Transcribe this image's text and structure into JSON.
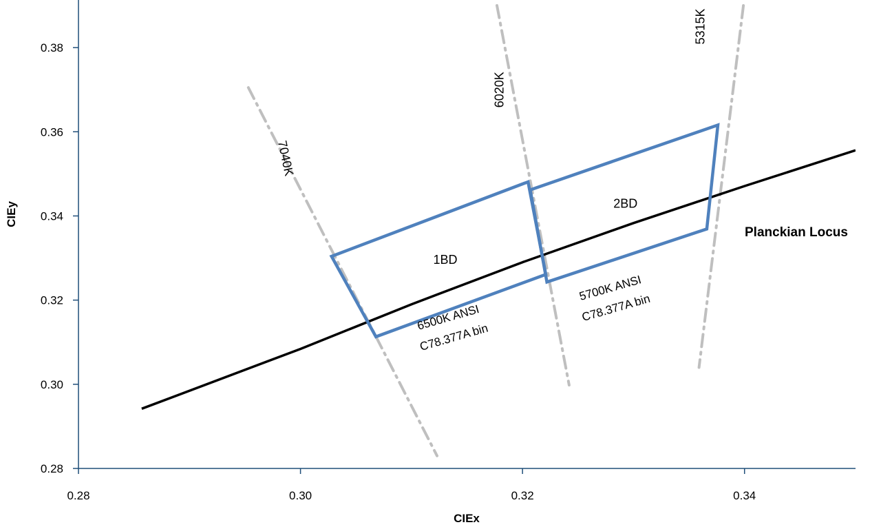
{
  "chart_data": {
    "type": "scatter",
    "xlabel": "CIEx",
    "ylabel": "CIEy",
    "xlim": [
      0.28,
      0.35
    ],
    "ylim": [
      0.28,
      0.39
    ],
    "x_ticks": [
      "0.28",
      "0.30",
      "0.32",
      "0.34"
    ],
    "y_ticks": [
      "0.28",
      "0.30",
      "0.32",
      "0.34",
      "0.36",
      "0.38"
    ],
    "grid": false,
    "colors": {
      "locus": "#000000",
      "bins": "#4F81BD",
      "isotherms": "#BFBFBF",
      "axis": "#1F4E79"
    },
    "planckian_locus": {
      "label": "Planckian Locus",
      "points": [
        [
          0.2857,
          0.2942
        ],
        [
          0.3,
          0.3084
        ],
        [
          0.31,
          0.319
        ],
        [
          0.32,
          0.329
        ],
        [
          0.33,
          0.3383
        ],
        [
          0.34,
          0.3471
        ],
        [
          0.35,
          0.3556
        ]
      ]
    },
    "isotherms": [
      {
        "label": "7040K",
        "points": [
          [
            0.2953,
            0.3705
          ],
          [
            0.3123,
            0.283
          ]
        ]
      },
      {
        "label": "6020K",
        "points": [
          [
            0.3177,
            0.39
          ],
          [
            0.3242,
            0.2998
          ]
        ]
      },
      {
        "label": "5315K",
        "points": [
          [
            0.3399,
            0.39
          ],
          [
            0.3359,
            0.304
          ]
        ]
      }
    ],
    "bins": [
      {
        "name": "1BD",
        "annotation": [
          "6500K ANSI",
          "C78.377A bin"
        ],
        "vertices": [
          [
            0.3028,
            0.3304
          ],
          [
            0.3205,
            0.3481
          ],
          [
            0.3221,
            0.3261
          ],
          [
            0.3068,
            0.3113
          ]
        ]
      },
      {
        "name": "2BD",
        "annotation": [
          "5700K ANSI",
          "C78.377A bin"
        ],
        "vertices": [
          [
            0.3207,
            0.3462
          ],
          [
            0.3376,
            0.3616
          ],
          [
            0.3366,
            0.3369
          ],
          [
            0.3222,
            0.3243
          ]
        ]
      }
    ]
  }
}
